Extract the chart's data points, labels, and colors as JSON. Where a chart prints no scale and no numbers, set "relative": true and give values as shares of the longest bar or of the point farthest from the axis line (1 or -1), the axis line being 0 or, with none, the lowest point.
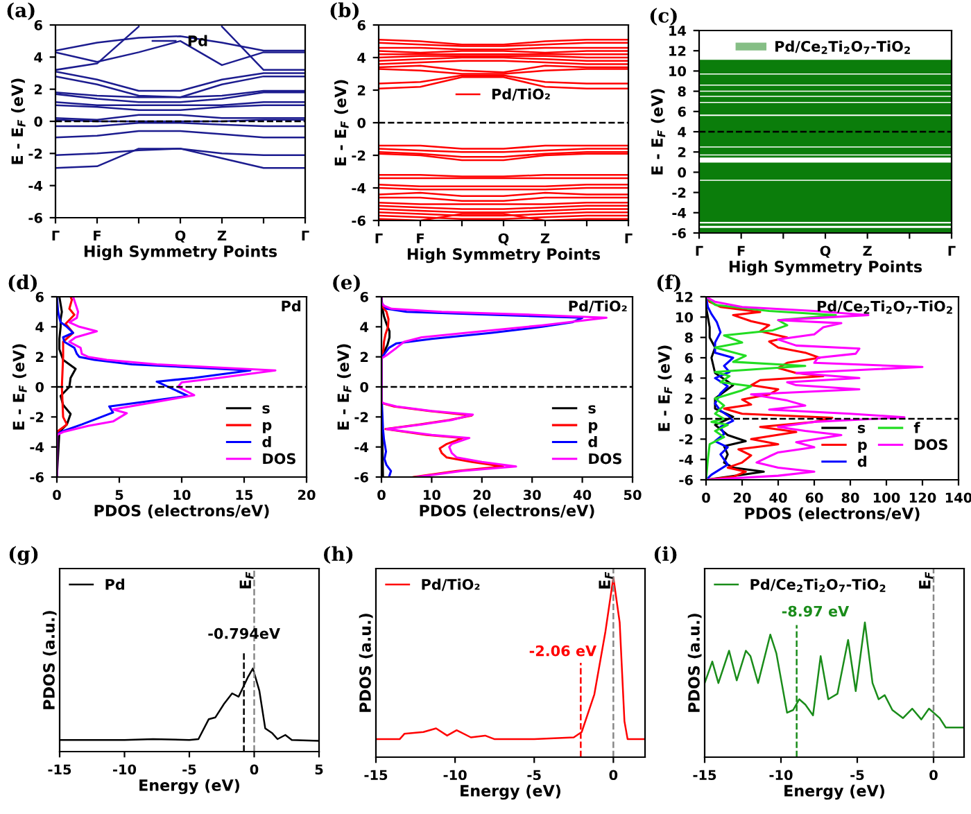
{
  "chart_data": [
    {
      "type": "line",
      "color": "#1c1c8f",
      "categories": [
        "Γ",
        "F",
        null,
        "Q",
        "Z",
        null,
        "Γ"
      ],
      "ylim": [
        -6,
        6
      ],
      "yticks": [
        -6,
        -4,
        -2,
        0,
        2,
        4,
        6
      ],
      "xlabel": "High Symmetry Points",
      "ylabel": "E - E$_{F}$ (eV)",
      "legend": "top",
      "annotations": [
        "(a)"
      ],
      "ref_lines": [
        {
          "axis": "y",
          "value": 0,
          "color": "#000000",
          "line_style": "dashed"
        }
      ],
      "series": [
        {
          "name": "Pd",
          "values": [
            -2.9,
            -2.8,
            -1.7,
            -1.7,
            -2.3,
            -2.9,
            -2.9
          ]
        },
        {
          "values": [
            -2.1,
            -2.0,
            -1.8,
            -1.7,
            -2.0,
            -2.1,
            -2.1
          ]
        },
        {
          "values": [
            -1.0,
            -0.9,
            -0.6,
            -0.6,
            -0.8,
            -1.0,
            -1.0
          ]
        },
        {
          "values": [
            -0.3,
            -0.3,
            -0.1,
            -0.1,
            -0.2,
            -0.3,
            -0.3
          ]
        },
        {
          "values": [
            0.1,
            0,
            0,
            0,
            0,
            0.1,
            0.1
          ]
        },
        {
          "values": [
            0.2,
            0.1,
            0.4,
            0.4,
            0.2,
            0.2,
            0.2
          ]
        },
        {
          "values": [
            1.0,
            0.9,
            0.7,
            0.7,
            0.9,
            1.0,
            1.0
          ]
        },
        {
          "values": [
            1.2,
            1.0,
            1.0,
            1.0,
            1.0,
            1.2,
            1.2
          ]
        },
        {
          "values": [
            1.7,
            1.4,
            1.2,
            1.2,
            1.4,
            1.8,
            1.8
          ]
        },
        {
          "values": [
            1.8,
            1.6,
            1.5,
            1.5,
            1.6,
            1.9,
            1.9
          ]
        },
        {
          "values": [
            2.8,
            2.3,
            1.6,
            1.5,
            2.3,
            2.8,
            2.8
          ]
        },
        {
          "values": [
            3.1,
            2.6,
            1.9,
            1.9,
            2.6,
            3.0,
            3.0
          ]
        },
        {
          "values": [
            4.4,
            4.9,
            5.2,
            5.3,
            4.9,
            4.4,
            4.4
          ]
        },
        {
          "values": [
            4.3,
            3.7,
            4.3,
            5.0,
            3.5,
            4.3,
            4.3
          ]
        },
        {
          "values": [
            3.2,
            3.6,
            5.9,
            null,
            5.9,
            3.2,
            3.2
          ]
        }
      ]
    },
    {
      "type": "line",
      "color": "#ff0000",
      "categories": [
        "Γ",
        "F",
        null,
        "Q",
        "Z",
        null,
        "Γ"
      ],
      "ylim": [
        -6,
        6
      ],
      "yticks": [
        -6,
        -4,
        -2,
        0,
        2,
        4,
        6
      ],
      "xlabel": "High Symmetry Points",
      "ylabel": "E - E$_{F}$ (eV)",
      "legend": "center",
      "annotations": [
        "(b)"
      ],
      "ref_lines": [
        {
          "axis": "y",
          "value": 0,
          "color": "#000000",
          "line_style": "dashed"
        }
      ],
      "series": [
        {
          "name": "Pd/TiO₂",
          "values": [
            5.1,
            5.0,
            4.8,
            4.8,
            5.0,
            5.1,
            5.1
          ]
        },
        {
          "values": [
            4.9,
            4.8,
            4.7,
            4.7,
            4.8,
            4.9,
            4.9
          ]
        },
        {
          "values": [
            4.6,
            4.6,
            4.5,
            4.5,
            4.6,
            4.6,
            4.6
          ]
        },
        {
          "values": [
            4.4,
            4.3,
            4.4,
            4.4,
            4.3,
            4.4,
            4.4
          ]
        },
        {
          "values": [
            4.2,
            4.2,
            4.2,
            4.2,
            4.2,
            4.2,
            4.2
          ]
        },
        {
          "values": [
            4.0,
            4.1,
            4.1,
            4.1,
            4.1,
            4.0,
            4.0
          ]
        },
        {
          "values": [
            3.8,
            3.9,
            4.0,
            4.0,
            3.9,
            3.8,
            3.8
          ]
        },
        {
          "values": [
            3.6,
            3.7,
            3.8,
            3.8,
            3.7,
            3.6,
            3.6
          ]
        },
        {
          "values": [
            3.4,
            3.5,
            3.2,
            3.1,
            3.5,
            3.4,
            3.4
          ]
        },
        {
          "values": [
            3.3,
            3.2,
            3.0,
            3.0,
            3.2,
            3.3,
            3.3
          ]
        },
        {
          "values": [
            2.4,
            2.5,
            2.9,
            2.9,
            2.5,
            2.4,
            2.4
          ]
        },
        {
          "values": [
            2.1,
            2.2,
            2.8,
            2.8,
            2.2,
            2.1,
            2.1
          ]
        },
        {
          "values": [
            -1.4,
            -1.4,
            -1.6,
            -1.6,
            -1.4,
            -1.4,
            -1.4
          ]
        },
        {
          "values": [
            -1.6,
            -1.7,
            -1.8,
            -1.8,
            -1.7,
            -1.6,
            -1.6
          ]
        },
        {
          "values": [
            -1.8,
            -1.9,
            -2.1,
            -2.1,
            -1.9,
            -1.8,
            -1.8
          ]
        },
        {
          "values": [
            -1.9,
            -2.0,
            -2.3,
            -2.3,
            -2.0,
            -1.9,
            -1.9
          ]
        },
        {
          "values": [
            -3.2,
            -3.2,
            -3.3,
            -3.3,
            -3.2,
            -3.2,
            -3.2
          ]
        },
        {
          "values": [
            -3.4,
            -3.4,
            -3.4,
            -3.4,
            -3.4,
            -3.4,
            -3.4
          ]
        },
        {
          "values": [
            -3.8,
            -3.9,
            -3.9,
            -3.9,
            -3.9,
            -3.8,
            -3.8
          ]
        },
        {
          "values": [
            -4.0,
            -4.1,
            -4.1,
            -4.1,
            -4.1,
            -4.0,
            -4.0
          ]
        },
        {
          "values": [
            -4.4,
            -4.3,
            -4.5,
            -4.5,
            -4.3,
            -4.4,
            -4.4
          ]
        },
        {
          "values": [
            -4.6,
            -4.6,
            -4.8,
            -4.8,
            -4.6,
            -4.6,
            -4.6
          ]
        },
        {
          "values": [
            -4.9,
            -5.0,
            -5.0,
            -5.0,
            -5.0,
            -4.9,
            -4.9
          ]
        },
        {
          "values": [
            -5.1,
            -5.2,
            -5.3,
            -5.3,
            -5.2,
            -5.1,
            -5.1
          ]
        },
        {
          "values": [
            -5.3,
            -5.4,
            -5.5,
            -5.5,
            -5.4,
            -5.3,
            -5.3
          ]
        },
        {
          "values": [
            -5.5,
            -5.6,
            -5.7,
            -5.7,
            -5.6,
            -5.5,
            -5.5
          ]
        },
        {
          "values": [
            -5.7,
            -5.8,
            -5.9,
            -5.9,
            -5.8,
            -5.7,
            -5.7
          ]
        },
        {
          "values": [
            -5.9,
            -6.0,
            -5.6,
            -5.6,
            -6.0,
            -5.9,
            -5.9
          ]
        }
      ]
    },
    {
      "type": "line",
      "categories": [
        "Γ",
        "F",
        null,
        "Q",
        "Z",
        null,
        "Γ"
      ],
      "ylim": [
        -6,
        14
      ],
      "yticks": [
        -6,
        -4,
        -2,
        0,
        2,
        4,
        6,
        8,
        10,
        12,
        14
      ],
      "xlabel": "High Symmetry Points",
      "ylabel": "E - E$_{F}$ (eV)",
      "legend": "top",
      "annotations": [
        "(c)"
      ],
      "ref_lines": [
        {
          "axis": "y",
          "value": 4,
          "color": "#000000",
          "line_style": "dashed"
        }
      ],
      "bands": [
        {
          "axis": "y",
          "from": -6,
          "to": -5.5,
          "color": "#0b7d0b",
          "label": "Pd/Ce$_{2}$Ti$_{2}$O$_{7}$-TiO$_{2}$"
        },
        {
          "axis": "y",
          "from": -5.3,
          "to": -5.05,
          "color": "#0b7d0b"
        },
        {
          "axis": "y",
          "from": -4.9,
          "to": -0.85,
          "color": "#0b7d0b"
        },
        {
          "axis": "y",
          "from": -0.75,
          "to": 0.95,
          "color": "#0b7d0b"
        },
        {
          "axis": "y",
          "from": 1.45,
          "to": 1.65,
          "color": "#0b7d0b"
        },
        {
          "axis": "y",
          "from": 1.75,
          "to": 2.45,
          "color": "#0b7d0b"
        },
        {
          "axis": "y",
          "from": 2.55,
          "to": 5.55,
          "color": "#0b7d0b"
        },
        {
          "axis": "y",
          "from": 5.7,
          "to": 6.85,
          "color": "#0b7d0b"
        },
        {
          "axis": "y",
          "from": 6.95,
          "to": 7.45,
          "color": "#0b7d0b"
        },
        {
          "axis": "y",
          "from": 7.55,
          "to": 7.95,
          "color": "#0b7d0b"
        },
        {
          "axis": "y",
          "from": 8.05,
          "to": 8.55,
          "color": "#0b7d0b"
        },
        {
          "axis": "y",
          "from": 8.65,
          "to": 9.65,
          "color": "#0b7d0b"
        },
        {
          "axis": "y",
          "from": 9.75,
          "to": 11.1,
          "color": "#0b7d0b"
        }
      ]
    },
    {
      "type": "line",
      "orientation": "horizontal",
      "title": "Pd",
      "xlim": [
        0,
        20
      ],
      "ylim": [
        -6,
        6
      ],
      "xticks": [
        0,
        5,
        10,
        15,
        20
      ],
      "yticks": [
        -6,
        -4,
        -2,
        0,
        2,
        4,
        6
      ],
      "xlabel": "PDOS (electrons/eV)",
      "ylabel": "E - E$_{F}$ (eV)",
      "legend": "bottom right",
      "annotations": [
        "(d)"
      ],
      "ref_lines": [
        {
          "axis": "y",
          "value": 0,
          "color": "#000000",
          "line_style": "dashed"
        }
      ],
      "series": [
        {
          "name": "s",
          "color": "#000000",
          "x": [
            -6,
            -3,
            -2.5,
            -1.8,
            -1.2,
            -0.6,
            0,
            0.6,
            1.2,
            1.8,
            2.5,
            3.2,
            4,
            4.5,
            5,
            5.5,
            6
          ],
          "values": [
            0,
            0.2,
            0.8,
            1.1,
            0.5,
            0.3,
            1.0,
            1.1,
            1.5,
            0.5,
            0.2,
            0.2,
            0.3,
            0.3,
            0.4,
            0.3,
            0.2
          ]
        },
        {
          "name": "p",
          "color": "#ff0000",
          "x": [
            -6,
            -3,
            -2.5,
            -2,
            0,
            2,
            3,
            3.6,
            4.2,
            4.8,
            5.2,
            5.8,
            6
          ],
          "values": [
            0,
            0,
            0.8,
            0.5,
            0.4,
            0.5,
            0.5,
            1.3,
            0.7,
            1.4,
            1.0,
            1.2,
            1.1
          ]
        },
        {
          "name": "d",
          "color": "#0000ff",
          "x": [
            -6,
            -3.2,
            -3,
            -2.5,
            -1.7,
            -1.3,
            -0.6,
            0.35,
            0.6,
            1.1,
            1.5,
            1.8,
            2,
            2.2,
            2.6,
            3,
            3.3,
            3.6,
            4,
            4.3,
            4.6,
            5,
            6
          ],
          "values": [
            0,
            0,
            0.3,
            2,
            4.5,
            4.2,
            10.5,
            8.0,
            11,
            15.5,
            6,
            3,
            1.8,
            1.6,
            1.4,
            0.6,
            0.5,
            1.3,
            0.8,
            0.3,
            0.2,
            0.1,
            0
          ]
        },
        {
          "name": "DOS",
          "color": "#ff00ff",
          "x": [
            -6,
            -3.2,
            -3,
            -2.6,
            -2.3,
            -1.75,
            -1.5,
            -0.55,
            0,
            0.3,
            0.6,
            1.1,
            1.5,
            1.8,
            2,
            2.2,
            2.6,
            3,
            3.3,
            3.7,
            4,
            4.3,
            4.6,
            5,
            5.5,
            6
          ],
          "values": [
            0,
            0,
            0.5,
            2.5,
            4.5,
            5.6,
            4.5,
            11.0,
            9.7,
            10,
            13,
            17.5,
            8,
            4,
            2.5,
            2.0,
            1.9,
            1.0,
            1.5,
            3.2,
            1.8,
            1.0,
            1.6,
            1.7,
            1.5,
            1.3
          ]
        }
      ]
    },
    {
      "type": "line",
      "orientation": "horizontal",
      "title": "Pd/TiO₂",
      "xlim": [
        0,
        50
      ],
      "ylim": [
        -6,
        6
      ],
      "xticks": [
        0,
        10,
        20,
        30,
        40,
        50
      ],
      "yticks": [
        -6,
        -4,
        -2,
        0,
        2,
        4,
        6
      ],
      "xlabel": "PDOS (electrons/eV)",
      "ylabel": "E - E$_{F}$ (eV)",
      "legend": "bottom right",
      "annotations": [
        "(e)"
      ],
      "ref_lines": [
        {
          "axis": "y",
          "value": 0,
          "color": "#000000",
          "line_style": "dashed"
        }
      ],
      "series": [
        {
          "name": "s",
          "color": "#000000",
          "x": [
            -6,
            -4,
            -1,
            1.9,
            2.3,
            2.8,
            3.3,
            3.7,
            4.2,
            4.7,
            5.2,
            6
          ],
          "values": [
            0.3,
            0.2,
            0,
            0,
            0.5,
            1.2,
            1.6,
            1.6,
            1.0,
            0.5,
            0.2,
            0
          ]
        },
        {
          "name": "p",
          "color": "#ff0000",
          "x": [
            -6,
            -5.6,
            -5.3,
            -5.0,
            -4.7,
            -4.4,
            -4.1,
            -3.8,
            -3.4,
            -3.2,
            -2.8,
            -2.5,
            -2.2,
            -1.9,
            -1.6,
            -1.3,
            -1.1,
            -1,
            1.9,
            2.5,
            3,
            3.5,
            4,
            4.5,
            5,
            5.3,
            5.6,
            6
          ],
          "values": [
            6.4,
            15,
            24.2,
            18,
            13,
            12,
            11.6,
            13,
            16.2,
            9,
            0.8,
            7.5,
            13.5,
            18,
            9.5,
            2.5,
            0.3,
            0,
            0,
            0.4,
            0.5,
            0.8,
            1.3,
            1.4,
            1.0,
            0.3,
            0,
            0
          ]
        },
        {
          "name": "d",
          "color": "#0000ff",
          "x": [
            -6,
            -5.6,
            -5.2,
            -4.8,
            -4.3,
            -3.5,
            -2.8,
            -2,
            -1.2,
            -1,
            1.9,
            2.2,
            2.6,
            2.9,
            3.2,
            3.6,
            4,
            4.3,
            4.6,
            4.8,
            5,
            5.2,
            5.6,
            6
          ],
          "values": [
            1.5,
            1.9,
            1.0,
            0.6,
            0.9,
            0.5,
            0.3,
            0.2,
            0.1,
            0,
            0,
            0.6,
            1.5,
            3,
            10,
            22,
            32,
            38,
            40,
            22,
            5,
            1,
            0,
            0
          ]
        },
        {
          "name": "DOS",
          "color": "#ff00ff",
          "x": [
            -6,
            -5.6,
            -5.3,
            -5.0,
            -4.7,
            -4.4,
            -4.0,
            -3.8,
            -3.4,
            -3.2,
            -2.8,
            -2.5,
            -2.2,
            -1.85,
            -1.6,
            -1.3,
            -1.1,
            -1,
            1.9,
            2.1,
            2.6,
            3,
            3.3,
            3.7,
            4.1,
            4.6,
            4.8,
            5,
            5.2,
            5.4,
            5.6,
            6
          ],
          "values": [
            7,
            16,
            26.8,
            20,
            15,
            14,
            13.5,
            14,
            17.5,
            10,
            1,
            8,
            14,
            18.2,
            10,
            3,
            0.5,
            0,
            0,
            1,
            3,
            4.5,
            8,
            20,
            32,
            44.8,
            30,
            12,
            2,
            0.5,
            0,
            0
          ]
        }
      ]
    },
    {
      "type": "line",
      "orientation": "horizontal",
      "title": "Pd/Ce$_{2}$Ti$_{2}$O$_{7}$-TiO$_{2}$",
      "xlim": [
        0,
        140
      ],
      "ylim": [
        -6,
        12
      ],
      "xticks": [
        0,
        20,
        40,
        60,
        80,
        100,
        120,
        140
      ],
      "yticks": [
        -6,
        -4,
        -2,
        0,
        2,
        4,
        6,
        8,
        10,
        12
      ],
      "xlabel": "PDOS (electrons/eV)",
      "ylabel": "E - E$_{F}$ (eV)",
      "legend": "bottom right",
      "annotations": [
        "(f)"
      ],
      "ref_lines": [
        {
          "axis": "y",
          "value": 0,
          "color": "#000000",
          "line_style": "dashed"
        }
      ],
      "series": [
        {
          "name": "s",
          "color": "#000000",
          "x": [
            -6,
            -5.5,
            -5.2,
            -4.8,
            -4.3,
            -3.5,
            -2.7,
            -2.2,
            -1.6,
            -0.6,
            0.2,
            1,
            2,
            3.3,
            4.5,
            6,
            7,
            8,
            9,
            10,
            11,
            12
          ],
          "values": [
            0,
            20,
            32,
            15,
            10,
            12,
            10,
            22,
            12,
            5,
            15,
            5,
            5,
            15,
            5,
            3,
            5,
            2,
            2,
            1,
            0,
            0
          ]
        },
        {
          "name": "p",
          "color": "#ff0000",
          "x": [
            -6,
            -5.7,
            -5.2,
            -4.8,
            -4.3,
            -3.6,
            -3.0,
            -2.5,
            -2.0,
            -1.3,
            -0.8,
            -0.3,
            0.1,
            0.5,
            1.0,
            1.4,
            1.9,
            2.4,
            2.9,
            3.3,
            3.8,
            4.2,
            4.5,
            5.0,
            5.5,
            6.0,
            6.5,
            7.0,
            7.6,
            8.0,
            8.6,
            9.2,
            9.6,
            10.2,
            10.5,
            11.0,
            11.5,
            12
          ],
          "values": [
            0,
            15,
            22,
            12,
            20,
            25,
            18,
            40,
            25,
            50,
            30,
            60,
            70,
            20,
            10,
            25,
            20,
            35,
            40,
            25,
            30,
            65,
            50,
            40,
            45,
            63,
            55,
            40,
            35,
            45,
            30,
            35,
            25,
            15,
            30,
            8,
            2,
            0
          ]
        },
        {
          "name": "d",
          "color": "#0000ff",
          "x": [
            -6,
            -5.5,
            -4.5,
            -3.5,
            -2.8,
            -2.2,
            -1.5,
            -0.8,
            -0.2,
            0.2,
            0.8,
            1.5,
            2.5,
            3.2,
            4,
            4.6,
            5.2,
            6,
            6.5,
            7.5,
            8.5,
            9.5,
            10.3,
            11,
            12
          ],
          "values": [
            0,
            3,
            12,
            8,
            12,
            5,
            10,
            8,
            15,
            13,
            8,
            5,
            8,
            12,
            5,
            13,
            10,
            15,
            5,
            5,
            8,
            6,
            3,
            1,
            0
          ]
        },
        {
          "name": "f",
          "color": "#22dd22",
          "x": [
            -6,
            -4,
            -2.5,
            -1.8,
            -1.2,
            -0.6,
            -0.3,
            0,
            0.5,
            1.3,
            2,
            2.8,
            3.2,
            3.6,
            4.2,
            4.6,
            5.2,
            5.6,
            6.2,
            7.0,
            7.5,
            8.2,
            8.7,
            9.2,
            9.7,
            10.2,
            10.6,
            11.2,
            12
          ],
          "values": [
            0,
            1,
            2,
            10,
            5,
            12,
            3,
            10,
            5,
            10,
            5,
            20,
            25,
            8,
            13,
            5,
            55,
            15,
            22,
            5,
            20,
            10,
            37,
            45,
            40,
            72,
            35,
            5,
            0
          ]
        },
        {
          "name": "DOS",
          "color": "#ff00ff",
          "x": [
            -6,
            -5.6,
            -5.2,
            -4.8,
            -4.3,
            -3.7,
            -3.3,
            -2.8,
            -2.3,
            -1.6,
            -1.2,
            -0.8,
            -0.3,
            0.15,
            0.5,
            0.9,
            1.3,
            1.8,
            2.4,
            2.9,
            3.3,
            3.6,
            4.0,
            4.5,
            5.1,
            5.5,
            6.0,
            6.4,
            6.9,
            7.2,
            7.8,
            8.3,
            9.0,
            9.4,
            9.7,
            10.2,
            10.6,
            11.0,
            11.5,
            12
          ],
          "values": [
            0,
            40,
            60,
            40,
            28,
            35,
            40,
            60,
            50,
            75,
            55,
            40,
            60,
            110,
            80,
            35,
            55,
            45,
            25,
            85,
            50,
            45,
            85,
            50,
            120,
            60,
            62,
            83,
            85,
            50,
            40,
            60,
            65,
            75,
            40,
            90,
            60,
            20,
            5,
            0
          ]
        }
      ]
    },
    {
      "type": "line",
      "relative": true,
      "xlim": [
        -15,
        5
      ],
      "xticks": [
        -15,
        -10,
        -5,
        0,
        5
      ],
      "xlabel": "Energy (eV)",
      "ylabel": "PDOS (a.u.)",
      "legend": "top left",
      "annotations": [
        "(g)"
      ],
      "ref_lines": [
        {
          "axis": "x",
          "value": 0,
          "color": "#888888",
          "line_style": "dashed",
          "label": "E$_{F}$"
        },
        {
          "axis": "x",
          "value": -0.794,
          "color": "#000000",
          "line_style": "dashed",
          "label": "-0.794eV"
        }
      ],
      "series": [
        {
          "name": "Pd",
          "color": "#000000",
          "x": [
            -15,
            -10,
            -7.8,
            -5,
            -4.3,
            -3.5,
            -3.0,
            -2.3,
            -1.7,
            -1.2,
            -0.5,
            -0.1,
            0.4,
            0.85,
            1.4,
            1.8,
            2.4,
            2.9,
            5
          ],
          "values": [
            0.14,
            0.14,
            0.15,
            0.14,
            0.15,
            0.39,
            0.41,
            0.58,
            0.7,
            0.66,
            0.89,
            1.0,
            0.73,
            0.28,
            0.22,
            0.15,
            0.2,
            0.14,
            0.13
          ]
        }
      ]
    },
    {
      "type": "line",
      "relative": true,
      "xlim": [
        -15,
        2
      ],
      "xticks": [
        -15,
        -10,
        -5,
        0
      ],
      "xlabel": "Energy (eV)",
      "ylabel": "PDOS (a.u.)",
      "legend": "top left",
      "annotations": [
        "(h)"
      ],
      "ref_lines": [
        {
          "axis": "x",
          "value": 0,
          "color": "#888888",
          "line_style": "dashed",
          "label": "E$_{F}$"
        },
        {
          "axis": "x",
          "value": -2.06,
          "color": "#ff0000",
          "line_style": "dashed",
          "label": "-2.06 eV"
        }
      ],
      "series": [
        {
          "name": "Pd/TiO₂",
          "color": "#ff0000",
          "x": [
            -15,
            -13.5,
            -13.2,
            -12,
            -11.2,
            -10.5,
            -9.9,
            -9,
            -8.1,
            -7.5,
            -5,
            -2.5,
            -2,
            -1.2,
            -0.5,
            0,
            0.4,
            0.7,
            0.9,
            1.9
          ],
          "values": [
            0.1,
            0.1,
            0.13,
            0.14,
            0.16,
            0.12,
            0.15,
            0.11,
            0.12,
            0.1,
            0.1,
            0.11,
            0.14,
            0.35,
            0.7,
            1.0,
            0.75,
            0.2,
            0.1,
            0.1
          ]
        }
      ]
    },
    {
      "type": "line",
      "relative": true,
      "xlim": [
        -15,
        2
      ],
      "xticks": [
        -15,
        -10,
        -5,
        0
      ],
      "xlabel": "Energy (eV)",
      "ylabel": "PDOS (a.u.)",
      "legend": "top left",
      "annotations": [
        "(i)"
      ],
      "ref_lines": [
        {
          "axis": "x",
          "value": 0,
          "color": "#888888",
          "line_style": "dashed",
          "label": "E$_{F}$"
        },
        {
          "axis": "x",
          "value": -8.97,
          "color": "#1a8c1a",
          "line_style": "dashed",
          "label": "-8.97 eV"
        }
      ],
      "series": [
        {
          "name": "Pd/Ce$_{2}$Ti$_{2}$O$_{7}$-TiO$_{2}$",
          "color": "#1a8c1a",
          "x": [
            -15,
            -14.5,
            -14.1,
            -13.4,
            -12.9,
            -12.3,
            -12.0,
            -11.5,
            -10.7,
            -10.3,
            -9.6,
            -9.2,
            -8.8,
            -8.4,
            -7.9,
            -7.4,
            -6.9,
            -6.3,
            -5.6,
            -5.1,
            -4.5,
            -4.0,
            -3.6,
            -3.2,
            -2.7,
            -2.0,
            -1.4,
            -0.8,
            -0.3,
            0.4,
            0.8,
            2.0
          ],
          "values": [
            0.55,
            0.71,
            0.55,
            0.79,
            0.57,
            0.79,
            0.75,
            0.55,
            0.91,
            0.77,
            0.33,
            0.35,
            0.43,
            0.39,
            0.31,
            0.75,
            0.43,
            0.47,
            0.87,
            0.49,
            1.0,
            0.55,
            0.43,
            0.46,
            0.35,
            0.29,
            0.36,
            0.28,
            0.36,
            0.29,
            0.22,
            0.22
          ]
        }
      ]
    }
  ]
}
